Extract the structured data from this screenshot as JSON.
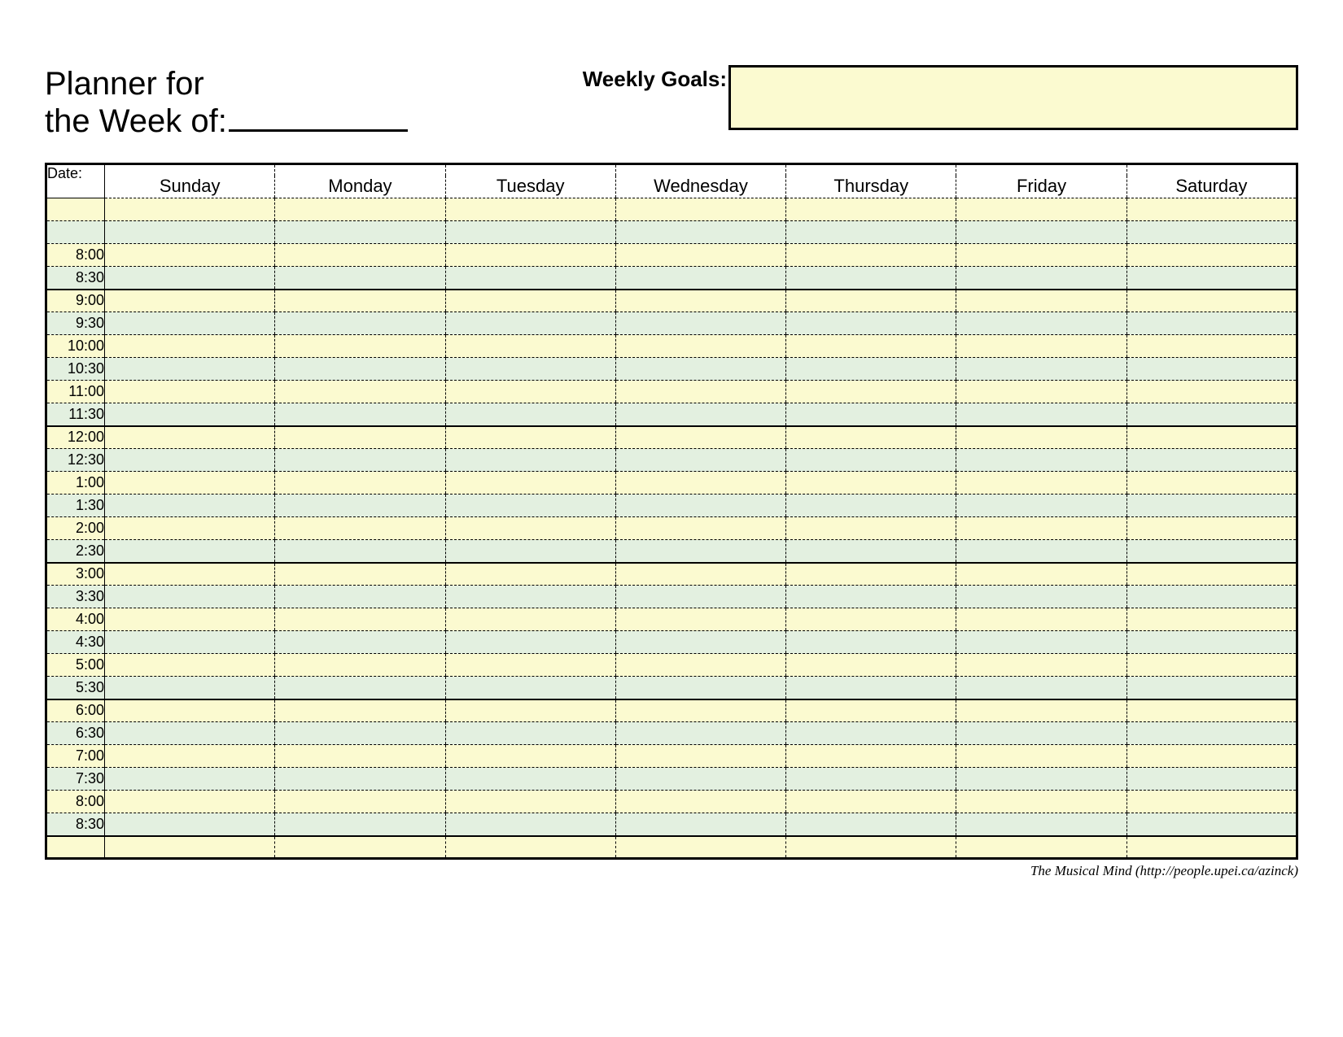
{
  "title_line1": "Planner for",
  "title_line2": "the Week of:",
  "goals_label": "Weekly Goals:",
  "date_label": "Date:",
  "days": [
    "Sunday",
    "Monday",
    "Tuesday",
    "Wednesday",
    "Thursday",
    "Friday",
    "Saturday"
  ],
  "colors": {
    "yellow": "#fbfad0",
    "green": "#e3f0e0",
    "border": "#000000",
    "background": "#ffffff"
  },
  "rows": [
    {
      "label": "",
      "band": "yellow",
      "blockEnd": false
    },
    {
      "label": "",
      "band": "green",
      "blockEnd": false
    },
    {
      "label": "8:00",
      "band": "yellow",
      "blockEnd": false
    },
    {
      "label": "8:30",
      "band": "green",
      "blockEnd": true
    },
    {
      "label": "9:00",
      "band": "yellow",
      "blockEnd": false
    },
    {
      "label": "9:30",
      "band": "green",
      "blockEnd": false
    },
    {
      "label": "10:00",
      "band": "yellow",
      "blockEnd": false
    },
    {
      "label": "10:30",
      "band": "green",
      "blockEnd": false
    },
    {
      "label": "11:00",
      "band": "yellow",
      "blockEnd": false
    },
    {
      "label": "11:30",
      "band": "green",
      "blockEnd": true
    },
    {
      "label": "12:00",
      "band": "yellow",
      "blockEnd": false
    },
    {
      "label": "12:30",
      "band": "green",
      "blockEnd": false
    },
    {
      "label": "1:00",
      "band": "yellow",
      "blockEnd": false
    },
    {
      "label": "1:30",
      "band": "green",
      "blockEnd": false
    },
    {
      "label": "2:00",
      "band": "yellow",
      "blockEnd": false
    },
    {
      "label": "2:30",
      "band": "green",
      "blockEnd": true
    },
    {
      "label": "3:00",
      "band": "yellow",
      "blockEnd": false
    },
    {
      "label": "3:30",
      "band": "green",
      "blockEnd": false
    },
    {
      "label": "4:00",
      "band": "yellow",
      "blockEnd": false
    },
    {
      "label": "4:30",
      "band": "green",
      "blockEnd": false
    },
    {
      "label": "5:00",
      "band": "yellow",
      "blockEnd": false
    },
    {
      "label": "5:30",
      "band": "green",
      "blockEnd": true
    },
    {
      "label": "6:00",
      "band": "yellow",
      "blockEnd": false
    },
    {
      "label": "6:30",
      "band": "green",
      "blockEnd": false
    },
    {
      "label": "7:00",
      "band": "yellow",
      "blockEnd": false
    },
    {
      "label": "7:30",
      "band": "green",
      "blockEnd": false
    },
    {
      "label": "8:00",
      "band": "yellow",
      "blockEnd": false
    },
    {
      "label": "8:30",
      "band": "green",
      "blockEnd": true
    },
    {
      "label": "",
      "band": "yellow",
      "blockEnd": false
    }
  ],
  "footer": "The Musical Mind   (http://people.upei.ca/azinck)"
}
